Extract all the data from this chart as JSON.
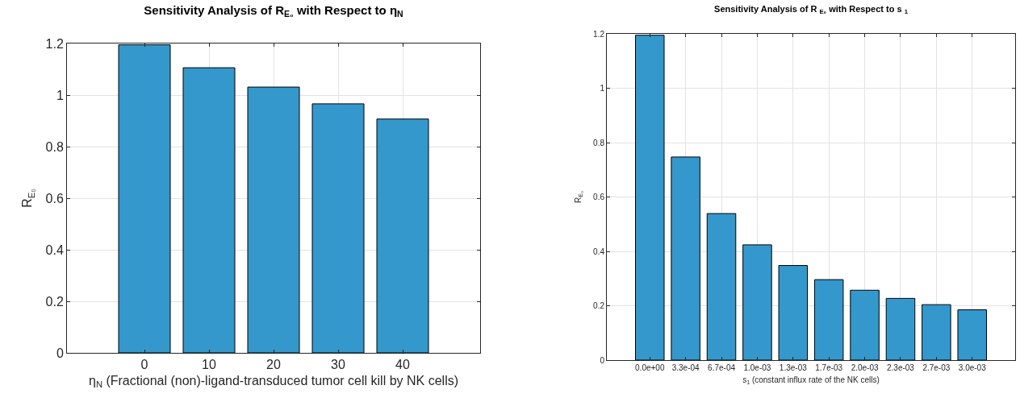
{
  "chart_data": [
    {
      "type": "bar",
      "title": "Sensitivity Analysis of R$_{E₀}$ with Respect to η$_{N}$",
      "xlabel": "η$_{N}$ (Fractional (non)-ligand-transduced tumor cell kill by NK cells)",
      "ylabel": "R$_{E₀}$",
      "categories": [
        "0",
        "10",
        "20",
        "30",
        "40"
      ],
      "values": [
        1.195,
        1.106,
        1.031,
        0.966,
        0.907
      ],
      "color": "#3498cc",
      "ylim": [
        0,
        1.2
      ],
      "yticks": [
        0,
        0.2,
        0.4,
        0.6,
        0.8,
        1,
        1.2
      ],
      "grid": true
    },
    {
      "type": "bar",
      "title": "Sensitivity Analysis of R $_{E₀}$ with Respect to s $_{1}$",
      "xlabel": "s$_{1}$ (constant influx rate of the NK cells)",
      "ylabel": "R$_{E₀}$",
      "categories": [
        "0.0e+00",
        "3.3e-04",
        "6.7e-04",
        "1.0e-03",
        "1.3e-03",
        "1.7e-03",
        "2.0e-03",
        "2.3e-03",
        "2.7e-03",
        "3.0e-03"
      ],
      "values": [
        1.195,
        0.747,
        0.539,
        0.424,
        0.348,
        0.296,
        0.257,
        0.227,
        0.204,
        0.185
      ],
      "color": "#3498cc",
      "ylim": [
        0,
        1.2
      ],
      "yticks": [
        0,
        0.2,
        0.4,
        0.6,
        0.8,
        1,
        1.2
      ],
      "grid": true
    }
  ]
}
